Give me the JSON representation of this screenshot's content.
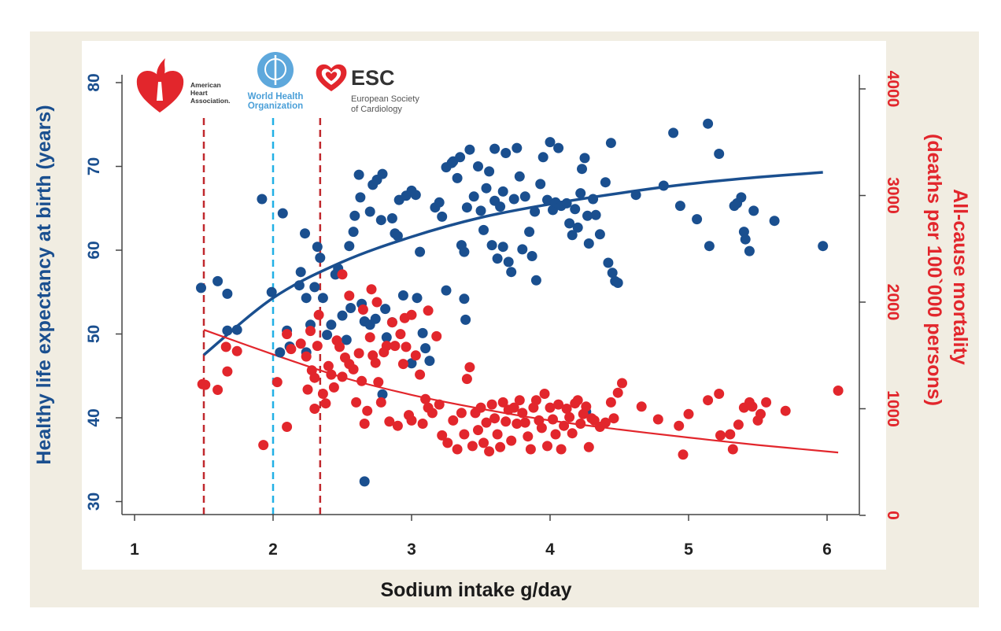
{
  "chart_data": {
    "type": "scatter",
    "xlabel": "Sodium intake g/day",
    "ylabel_left": "Healthy life expectancy at birth (years)",
    "ylabel_right_line1": "All-cause mortality",
    "ylabel_right_line2": "(deaths per 100`000 persons)",
    "xlim": [
      0.9,
      6.3
    ],
    "xticks": [
      1,
      2,
      3,
      4,
      5,
      6
    ],
    "ylim_left": [
      29,
      81
    ],
    "yticks_left": [
      30,
      40,
      50,
      60,
      70,
      80
    ],
    "ylim_right": [
      0,
      4200
    ],
    "yticks_right": [
      0,
      1000,
      2000,
      3000,
      4000
    ],
    "reference_lines": [
      {
        "x": 1.5,
        "color": "#c0292e",
        "org": "American Heart Association"
      },
      {
        "x": 2.0,
        "color": "#22b0e6",
        "org": "World Health Organization"
      },
      {
        "x": 2.34,
        "color": "#c0292e",
        "org": "European Society of Cardiology"
      }
    ],
    "logos": {
      "aha": {
        "line1": "American",
        "line2": "Heart",
        "line3": "Association."
      },
      "who": {
        "line1": "World Health",
        "line2": "Organization"
      },
      "esc": {
        "title": "ESC",
        "line1": "European Society",
        "line2": "of Cardiology"
      }
    },
    "colors": {
      "blue": "#1a4f8f",
      "red": "#e2262c",
      "bg": "#f1ede2"
    },
    "series": [
      {
        "axis": "left",
        "color": "#1a4f8f",
        "fit": {
          "x": [
            1.5,
            2.0,
            2.5,
            3.0,
            3.5,
            4.0,
            4.5,
            5.0,
            5.5,
            5.97
          ],
          "y": [
            47.5,
            54.3,
            58.6,
            61.6,
            63.9,
            65.5,
            66.8,
            67.9,
            68.7,
            69.3
          ]
        },
        "points": [
          [
            1.48,
            55.5
          ],
          [
            1.6,
            56.3
          ],
          [
            1.67,
            54.8
          ],
          [
            1.67,
            50.4
          ],
          [
            1.74,
            50.5
          ],
          [
            1.92,
            66.1
          ],
          [
            1.99,
            55.0
          ],
          [
            2.07,
            64.4
          ],
          [
            2.1,
            50.4
          ],
          [
            2.05,
            47.8
          ],
          [
            2.12,
            48.5
          ],
          [
            2.19,
            55.8
          ],
          [
            2.2,
            57.4
          ],
          [
            2.23,
            62.0
          ],
          [
            2.24,
            54.3
          ],
          [
            2.24,
            47.8
          ],
          [
            2.27,
            51.1
          ],
          [
            2.32,
            60.4
          ],
          [
            2.34,
            59.1
          ],
          [
            2.3,
            55.6
          ],
          [
            2.36,
            54.3
          ],
          [
            2.39,
            49.9
          ],
          [
            2.45,
            57.1
          ],
          [
            2.47,
            57.8
          ],
          [
            2.42,
            51.1
          ],
          [
            2.5,
            52.2
          ],
          [
            2.53,
            49.3
          ],
          [
            2.56,
            53.1
          ],
          [
            2.55,
            60.5
          ],
          [
            2.58,
            62.2
          ],
          [
            2.59,
            64.1
          ],
          [
            2.62,
            69.0
          ],
          [
            2.63,
            66.3
          ],
          [
            2.64,
            53.6
          ],
          [
            2.66,
            51.5
          ],
          [
            2.7,
            64.6
          ],
          [
            2.7,
            51.1
          ],
          [
            2.74,
            51.8
          ],
          [
            2.72,
            67.8
          ],
          [
            2.75,
            68.4
          ],
          [
            2.78,
            63.6
          ],
          [
            2.79,
            69.1
          ],
          [
            2.79,
            42.8
          ],
          [
            2.82,
            49.6
          ],
          [
            2.81,
            53.0
          ],
          [
            2.86,
            63.8
          ],
          [
            2.88,
            62.0
          ],
          [
            2.9,
            61.7
          ],
          [
            2.91,
            66.0
          ],
          [
            2.94,
            54.6
          ],
          [
            2.96,
            66.5
          ],
          [
            3.0,
            67.1
          ],
          [
            3.03,
            66.6
          ],
          [
            3.06,
            59.8
          ],
          [
            3.08,
            50.1
          ],
          [
            3.1,
            48.3
          ],
          [
            3.13,
            46.8
          ],
          [
            3.17,
            65.1
          ],
          [
            3.2,
            65.7
          ],
          [
            3.22,
            64.0
          ],
          [
            3.25,
            69.9
          ],
          [
            3.29,
            70.4
          ],
          [
            3.3,
            70.6
          ],
          [
            3.33,
            68.6
          ],
          [
            3.35,
            71.1
          ],
          [
            3.36,
            60.6
          ],
          [
            3.38,
            59.8
          ],
          [
            3.4,
            65.1
          ],
          [
            3.42,
            72.0
          ],
          [
            3.45,
            66.4
          ],
          [
            3.48,
            70.0
          ],
          [
            3.5,
            64.7
          ],
          [
            3.52,
            62.4
          ],
          [
            3.54,
            67.4
          ],
          [
            3.56,
            69.4
          ],
          [
            3.58,
            60.6
          ],
          [
            3.6,
            72.1
          ],
          [
            3.6,
            65.9
          ],
          [
            3.62,
            59.0
          ],
          [
            3.64,
            65.2
          ],
          [
            3.66,
            67.0
          ],
          [
            3.66,
            60.4
          ],
          [
            3.68,
            71.6
          ],
          [
            3.7,
            58.6
          ],
          [
            3.72,
            57.4
          ],
          [
            3.74,
            66.1
          ],
          [
            3.76,
            72.2
          ],
          [
            3.78,
            68.8
          ],
          [
            3.8,
            60.1
          ],
          [
            3.82,
            66.4
          ],
          [
            3.85,
            62.2
          ],
          [
            3.87,
            59.3
          ],
          [
            3.89,
            64.6
          ],
          [
            3.9,
            56.4
          ],
          [
            3.93,
            67.9
          ],
          [
            3.95,
            71.1
          ],
          [
            3.98,
            66.0
          ],
          [
            4.0,
            72.9
          ],
          [
            4.02,
            64.8
          ],
          [
            4.04,
            65.7
          ],
          [
            4.06,
            72.2
          ],
          [
            4.08,
            65.3
          ],
          [
            4.12,
            65.6
          ],
          [
            4.14,
            63.2
          ],
          [
            4.16,
            61.8
          ],
          [
            4.18,
            64.9
          ],
          [
            4.2,
            62.7
          ],
          [
            4.22,
            66.8
          ],
          [
            4.23,
            69.7
          ],
          [
            4.25,
            71.0
          ],
          [
            4.27,
            64.1
          ],
          [
            4.28,
            60.8
          ],
          [
            4.31,
            66.1
          ],
          [
            4.33,
            64.2
          ],
          [
            4.36,
            61.9
          ],
          [
            4.4,
            68.1
          ],
          [
            4.42,
            58.5
          ],
          [
            4.44,
            72.8
          ],
          [
            4.45,
            57.3
          ],
          [
            4.47,
            56.3
          ],
          [
            4.49,
            56.1
          ],
          [
            4.62,
            66.6
          ],
          [
            4.82,
            67.7
          ],
          [
            4.89,
            74.0
          ],
          [
            4.94,
            65.3
          ],
          [
            5.06,
            63.7
          ],
          [
            5.14,
            75.1
          ],
          [
            5.15,
            60.5
          ],
          [
            5.22,
            71.5
          ],
          [
            5.33,
            65.3
          ],
          [
            5.35,
            65.6
          ],
          [
            5.38,
            66.3
          ],
          [
            5.4,
            62.2
          ],
          [
            5.41,
            61.3
          ],
          [
            5.44,
            59.9
          ],
          [
            5.47,
            64.7
          ],
          [
            5.62,
            63.5
          ],
          [
            5.97,
            60.5
          ],
          [
            2.66,
            32.4
          ],
          [
            4.26,
            40.7
          ],
          [
            3.25,
            55.2
          ],
          [
            3.39,
            51.7
          ],
          [
            3.38,
            54.2
          ],
          [
            2.86,
            51.4
          ],
          [
            3.04,
            54.3
          ],
          [
            3.0,
            46.5
          ]
        ]
      },
      {
        "axis": "right",
        "color": "#e2262c",
        "fit": {
          "x": [
            1.5,
            2.0,
            2.5,
            3.0,
            3.5,
            4.0,
            4.5,
            5.0,
            5.5,
            6.08
          ],
          "y": [
            1740,
            1510,
            1295,
            1130,
            1000,
            890,
            805,
            730,
            660,
            590
          ]
        },
        "points": [
          [
            1.49,
            1230
          ],
          [
            1.51,
            1224
          ],
          [
            1.6,
            1177
          ],
          [
            1.66,
            1580
          ],
          [
            1.67,
            1350
          ],
          [
            1.74,
            1540
          ],
          [
            1.93,
            660
          ],
          [
            2.03,
            1250
          ],
          [
            2.1,
            830
          ],
          [
            2.1,
            1700
          ],
          [
            2.13,
            1560
          ],
          [
            2.2,
            1610
          ],
          [
            2.24,
            1490
          ],
          [
            2.25,
            1180
          ],
          [
            2.27,
            1730
          ],
          [
            2.28,
            1360
          ],
          [
            2.3,
            1290
          ],
          [
            2.3,
            1000
          ],
          [
            2.32,
            1590
          ],
          [
            2.36,
            1140
          ],
          [
            2.38,
            1050
          ],
          [
            2.4,
            1400
          ],
          [
            2.42,
            1320
          ],
          [
            2.44,
            1200
          ],
          [
            2.46,
            1640
          ],
          [
            2.48,
            1580
          ],
          [
            2.5,
            1300
          ],
          [
            2.52,
            1480
          ],
          [
            2.55,
            1420
          ],
          [
            2.58,
            1370
          ],
          [
            2.6,
            1060
          ],
          [
            2.62,
            1520
          ],
          [
            2.64,
            1260
          ],
          [
            2.66,
            860
          ],
          [
            2.68,
            980
          ],
          [
            2.7,
            1670
          ],
          [
            2.72,
            1500
          ],
          [
            2.74,
            1430
          ],
          [
            2.76,
            1250
          ],
          [
            2.78,
            1060
          ],
          [
            2.8,
            1530
          ],
          [
            2.82,
            1590
          ],
          [
            2.84,
            880
          ],
          [
            2.86,
            1810
          ],
          [
            2.88,
            1590
          ],
          [
            2.9,
            840
          ],
          [
            2.92,
            1700
          ],
          [
            2.94,
            1420
          ],
          [
            2.96,
            1580
          ],
          [
            2.98,
            940
          ],
          [
            3.0,
            890
          ],
          [
            3.03,
            1500
          ],
          [
            3.06,
            1320
          ],
          [
            3.08,
            860
          ],
          [
            3.1,
            1090
          ],
          [
            3.12,
            1010
          ],
          [
            3.15,
            960
          ],
          [
            3.18,
            1680
          ],
          [
            3.2,
            1040
          ],
          [
            3.22,
            750
          ],
          [
            3.26,
            680
          ],
          [
            3.3,
            890
          ],
          [
            3.33,
            620
          ],
          [
            3.36,
            960
          ],
          [
            3.38,
            760
          ],
          [
            3.4,
            1280
          ],
          [
            3.42,
            1390
          ],
          [
            3.44,
            650
          ],
          [
            3.46,
            960
          ],
          [
            3.48,
            800
          ],
          [
            3.5,
            1010
          ],
          [
            3.52,
            680
          ],
          [
            3.54,
            870
          ],
          [
            3.56,
            600
          ],
          [
            3.58,
            1040
          ],
          [
            3.6,
            910
          ],
          [
            3.62,
            760
          ],
          [
            3.64,
            640
          ],
          [
            3.66,
            1060
          ],
          [
            3.68,
            880
          ],
          [
            3.7,
            990
          ],
          [
            3.72,
            700
          ],
          [
            3.74,
            1010
          ],
          [
            3.76,
            860
          ],
          [
            3.78,
            1080
          ],
          [
            3.8,
            960
          ],
          [
            3.82,
            870
          ],
          [
            3.84,
            740
          ],
          [
            3.86,
            620
          ],
          [
            3.88,
            1010
          ],
          [
            3.9,
            1080
          ],
          [
            3.92,
            890
          ],
          [
            3.94,
            820
          ],
          [
            3.96,
            1140
          ],
          [
            3.98,
            650
          ],
          [
            4.0,
            1010
          ],
          [
            4.02,
            900
          ],
          [
            4.04,
            760
          ],
          [
            4.06,
            1040
          ],
          [
            4.08,
            620
          ],
          [
            4.1,
            840
          ],
          [
            4.12,
            1000
          ],
          [
            4.14,
            920
          ],
          [
            4.16,
            770
          ],
          [
            4.18,
            1050
          ],
          [
            4.2,
            1080
          ],
          [
            4.22,
            860
          ],
          [
            4.24,
            950
          ],
          [
            4.26,
            1020
          ],
          [
            4.28,
            640
          ],
          [
            4.3,
            910
          ],
          [
            4.32,
            890
          ],
          [
            4.36,
            830
          ],
          [
            4.4,
            870
          ],
          [
            4.44,
            1060
          ],
          [
            4.46,
            910
          ],
          [
            4.49,
            1150
          ],
          [
            4.52,
            1240
          ],
          [
            4.66,
            1020
          ],
          [
            4.78,
            900
          ],
          [
            4.93,
            840
          ],
          [
            4.96,
            570
          ],
          [
            5.0,
            950
          ],
          [
            5.14,
            1080
          ],
          [
            5.22,
            1140
          ],
          [
            5.23,
            750
          ],
          [
            5.3,
            760
          ],
          [
            5.32,
            620
          ],
          [
            5.36,
            850
          ],
          [
            5.4,
            1010
          ],
          [
            5.44,
            1060
          ],
          [
            5.46,
            1020
          ],
          [
            5.5,
            890
          ],
          [
            5.52,
            950
          ],
          [
            5.56,
            1060
          ],
          [
            5.7,
            980
          ],
          [
            6.08,
            1170
          ],
          [
            2.33,
            1880
          ],
          [
            2.71,
            2120
          ],
          [
            2.5,
            2260
          ],
          [
            2.55,
            2060
          ],
          [
            2.65,
            1930
          ],
          [
            2.75,
            2000
          ],
          [
            2.95,
            1850
          ],
          [
            3.0,
            1880
          ],
          [
            3.12,
            1920
          ]
        ]
      }
    ]
  }
}
